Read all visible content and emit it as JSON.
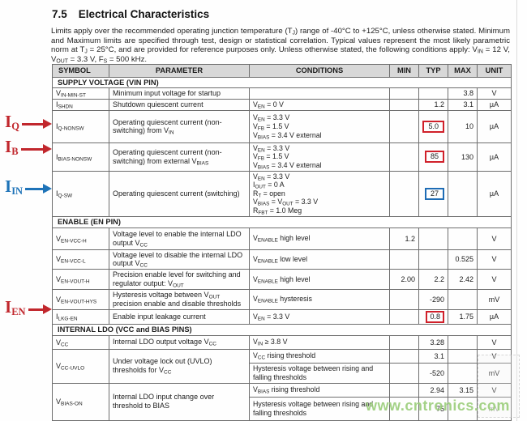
{
  "page": {
    "title_number": "7.5",
    "title_text": "Electrical Characteristics",
    "intro": "Limits apply over the recommended operating junction temperature (T~J~) range of -40°C to +125°C, unless otherwise stated. Minimum and Maximum limits are specified through test, design or statistical correlation. Typical values represent the most likely parametric norm at T~J~ = 25°C, and are provided for reference purposes only. Unless otherwise stated, the following conditions apply: V~IN~ = 12 V, V~OUT~ = 3.3 V, F~S~ = 500 kHz."
  },
  "colors": {
    "annotation_red": "#c1272d",
    "annotation_blue": "#1e73b8",
    "highlight_box_red": "#d0202a",
    "highlight_box_blue": "#1e6cb5",
    "watermark_green": "#9acd7a",
    "header_row_bg": "#d8d8d8"
  },
  "table": {
    "headers": {
      "symbol": "SYMBOL",
      "parameter": "PARAMETER",
      "conditions": "CONDITIONS",
      "min": "MIN",
      "typ": "TYP",
      "max": "MAX",
      "unit": "UNIT"
    },
    "rows": [
      {
        "type": "section",
        "label": "SUPPLY VOLTAGE (VIN PIN)"
      },
      {
        "symbol": "V~IN-MIN-ST~",
        "parameter": "Minimum input voltage for startup",
        "conds": [],
        "min": "",
        "typ": "",
        "max": "3.8",
        "unit": "V"
      },
      {
        "symbol": "I~SHDN~",
        "parameter": "Shutdown quiescent current",
        "conds": [
          "V~EN~ = 0 V"
        ],
        "min": "",
        "typ": "1.2",
        "max": "3.1",
        "unit": "µA"
      },
      {
        "symbol": "I~Q-NONSW~",
        "parameter": "Operating quiescent current (non-switching) from V~IN~",
        "conds": [
          "V~EN~ = 3.3 V",
          "V~FB~ = 1.5 V",
          "V~BIAS~ = 3.4 V external"
        ],
        "min": "",
        "typ": "5.0",
        "max": "10",
        "unit": "µA",
        "typ_highlight": "red"
      },
      {
        "symbol": "I~BIAS-NONSW~",
        "parameter": "Operating quiescent current (non-switching) from external V~BIAS~",
        "conds": [
          "V~EN~ = 3.3 V",
          "V~FB~ = 1.5 V",
          "V~BIAS~ = 3.4 V external"
        ],
        "min": "",
        "typ": "85",
        "max": "130",
        "unit": "µA",
        "typ_highlight": "red"
      },
      {
        "symbol": "I~Q-SW~",
        "parameter": "Operating quiescent current (switching)",
        "conds": [
          "V~EN~ = 3.3 V",
          "I~OUT~ = 0 A",
          "R~T~ = open",
          "V~BIAS~ = V~OUT~ = 3.3 V",
          "R~FBT~ = 1.0 Meg"
        ],
        "min": "",
        "typ": "27",
        "max": "",
        "unit": "µA",
        "typ_highlight": "blue"
      },
      {
        "type": "section",
        "label": "ENABLE (EN PIN)"
      },
      {
        "symbol": "V~EN-VCC-H~",
        "parameter": "Voltage level to enable the internal LDO output V~CC~",
        "conds": [
          "V~ENABLE~ high level"
        ],
        "min": "1.2",
        "typ": "",
        "max": "",
        "unit": "V"
      },
      {
        "symbol": "V~EN-VCC-L~",
        "parameter": "Voltage level to disable the internal LDO output V~CC~",
        "conds": [
          "V~ENABLE~ low level"
        ],
        "min": "",
        "typ": "",
        "max": "0.525",
        "unit": "V"
      },
      {
        "symbol": "V~EN-VOUT-H~",
        "parameter": "Precision enable level for switching and regulator output: V~OUT~",
        "conds": [
          "V~ENABLE~ high level"
        ],
        "min": "2.00",
        "typ": "2.2",
        "max": "2.42",
        "unit": "V"
      },
      {
        "symbol": "V~EN-VOUT-HYS~",
        "parameter": "Hysteresis voltage between V~OUT~ precision enable and disable thresholds",
        "conds": [
          "V~ENABLE~ hysteresis"
        ],
        "min": "",
        "typ": "-290",
        "max": "",
        "unit": "mV"
      },
      {
        "symbol": "I~LKG-EN~",
        "parameter": "Enable input leakage current",
        "conds": [
          "V~EN~ = 3.3 V"
        ],
        "min": "",
        "typ": "0.8",
        "max": "1.75",
        "unit": "µA",
        "typ_highlight": "red"
      },
      {
        "type": "section",
        "label": "INTERNAL LDO (VCC and BIAS PINS)"
      },
      {
        "symbol": "V~CC~",
        "parameter": "Internal LDO output voltage V~CC~",
        "conds": [
          "V~IN~ ≥ 3.8 V"
        ],
        "min": "",
        "typ": "3.28",
        "max": "",
        "unit": "V"
      },
      {
        "symbol": "V~CC-UVLO~",
        "parameter": "Under voltage lock out (UVLO) thresholds for V~CC~",
        "subrows": [
          {
            "cond": "V~CC~ rising threshold",
            "min": "",
            "typ": "3.1",
            "max": "",
            "unit": "V"
          },
          {
            "cond": "Hysteresis voltage between rising and falling thresholds",
            "min": "",
            "typ": "-520",
            "max": "",
            "unit": "mV"
          }
        ]
      },
      {
        "symbol": "V~BIAS-ON~",
        "parameter": "Internal LDO input change over threshold to BIAS",
        "subrows": [
          {
            "cond": "V~BIAS~ rising threshold",
            "min": "",
            "typ": "2.94",
            "max": "3.15",
            "unit": "V"
          },
          {
            "cond": "Hysteresis voltage between rising and falling thresholds",
            "min": "",
            "typ": "75",
            "max": "",
            "unit": "mV"
          }
        ]
      }
    ]
  },
  "annotations": [
    {
      "main": "I",
      "sub": "Q",
      "color": "red"
    },
    {
      "main": "I",
      "sub": "B",
      "color": "red"
    },
    {
      "main": "I",
      "sub": "IN",
      "color": "blue"
    },
    {
      "main": "I",
      "sub": "EN",
      "color": "red"
    }
  ],
  "watermark": "www.cntronics.com"
}
